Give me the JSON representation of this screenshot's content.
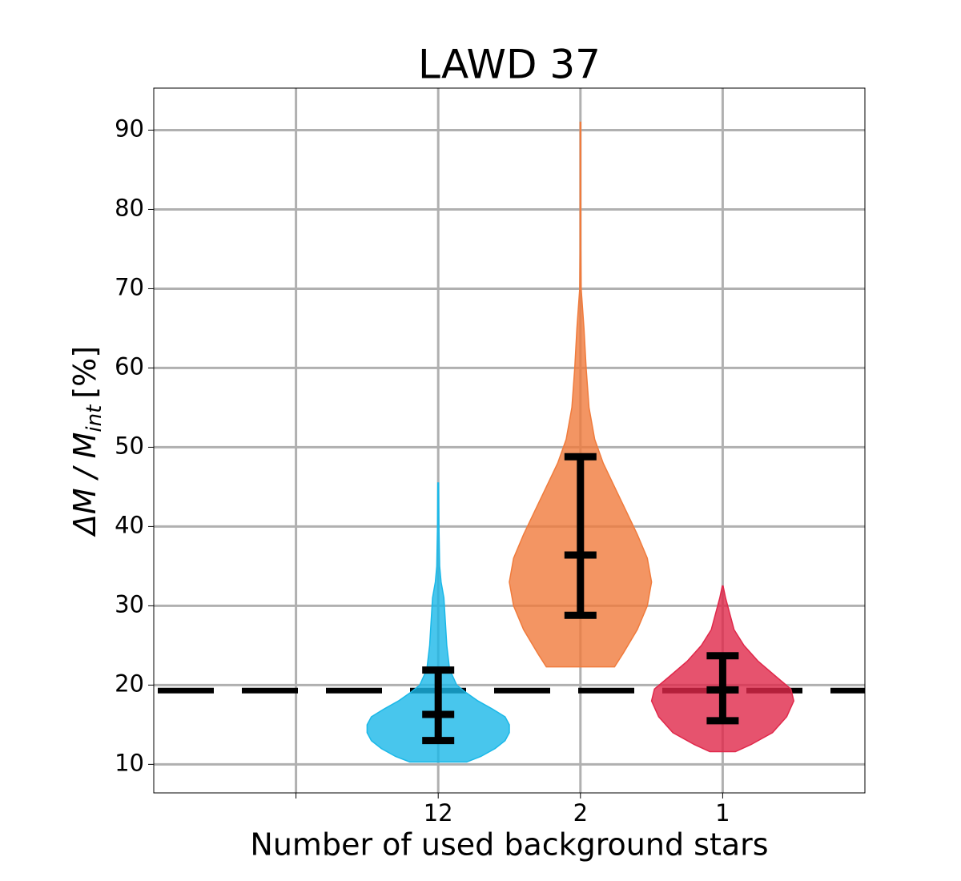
{
  "chart_data": {
    "type": "violin",
    "title": "LAWD 37",
    "xlabel": "Number of used background stars",
    "ylabel": "ΔM / M",
    "ylabel_subscript": "int",
    "ylabel_unit": "[%]",
    "xlim": [
      0,
      5
    ],
    "xticks": [
      {
        "value": 1,
        "label": null
      },
      {
        "value": 2,
        "label": "12"
      },
      {
        "value": 3,
        "label": "2"
      },
      {
        "value": 4,
        "label": "1"
      }
    ],
    "ylim": [
      6.4,
      95.3
    ],
    "yticks": [
      10,
      20,
      30,
      40,
      50,
      60,
      70,
      80,
      90
    ],
    "grid": true,
    "reference_line": 19.3,
    "series": [
      {
        "x": 2,
        "color": "#1ab8e8",
        "y": [
          10.3,
          11,
          12,
          13,
          14,
          15,
          16,
          17,
          18,
          19,
          20,
          22,
          25,
          28,
          31,
          33,
          35,
          40,
          45.5
        ],
        "half_width": [
          0.2,
          0.3,
          0.4,
          0.47,
          0.5,
          0.5,
          0.47,
          0.38,
          0.28,
          0.2,
          0.13,
          0.08,
          0.06,
          0.05,
          0.04,
          0.02,
          0.01,
          0.005,
          0.003
        ],
        "whisker_low": 13,
        "median": 16.3,
        "whisker_high": 21.9
      },
      {
        "x": 3,
        "color": "#f07b3c",
        "y": [
          22.3,
          24,
          27,
          30,
          33,
          36,
          39,
          42,
          45,
          48,
          51,
          55,
          60,
          65,
          70,
          75,
          85,
          91
        ],
        "half_width": [
          0.24,
          0.3,
          0.4,
          0.47,
          0.5,
          0.47,
          0.4,
          0.32,
          0.24,
          0.16,
          0.1,
          0.06,
          0.04,
          0.025,
          0.005,
          0.003,
          0.002,
          0.002
        ],
        "whisker_low": 28.8,
        "median": 36.4,
        "whisker_high": 48.8
      },
      {
        "x": 4,
        "color": "#e0284a",
        "y": [
          11.6,
          12.5,
          14,
          16,
          18,
          19.5,
          21,
          23,
          25,
          27,
          29,
          31,
          32.5
        ],
        "half_width": [
          0.09,
          0.2,
          0.35,
          0.45,
          0.5,
          0.48,
          0.38,
          0.25,
          0.15,
          0.08,
          0.05,
          0.02,
          0.003
        ],
        "whisker_low": 15.5,
        "median": 19.4,
        "whisker_high": 23.7
      }
    ]
  }
}
